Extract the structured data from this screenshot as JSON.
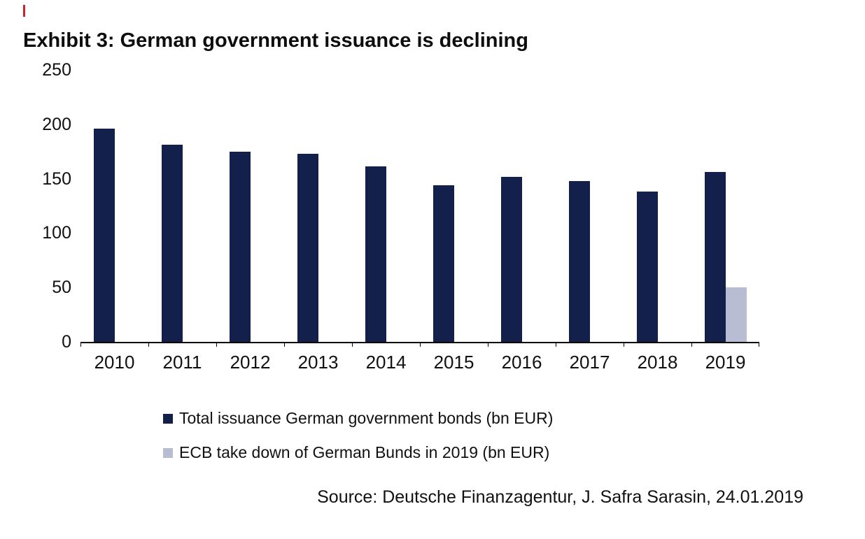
{
  "page": {
    "title": "Exhibit 3: German government issuance is declining",
    "source": "Source: Deutsche Finanzagentur, J. Safra Sarasin, 24.01.2019"
  },
  "chart_data": {
    "type": "bar",
    "title": "Exhibit 3: German government issuance is declining",
    "categories": [
      "2010",
      "2011",
      "2012",
      "2013",
      "2014",
      "2015",
      "2016",
      "2017",
      "2018",
      "2019"
    ],
    "series": [
      {
        "name": "Total issuance German government bonds (bn EUR)",
        "color": "#14204c",
        "values": [
          196,
          181,
          175,
          173,
          161,
          144,
          152,
          148,
          138,
          156
        ]
      },
      {
        "name": "ECB take down of German Bunds in 2019 (bn EUR)",
        "color": "#b9bdd3",
        "values": [
          null,
          null,
          null,
          null,
          null,
          null,
          null,
          null,
          null,
          50
        ]
      }
    ],
    "xlabel": "",
    "ylabel": "",
    "ylim": [
      0,
      250
    ],
    "yticks": [
      0,
      50,
      100,
      150,
      200,
      250
    ],
    "grid": false,
    "legend_position": "bottom-left"
  }
}
